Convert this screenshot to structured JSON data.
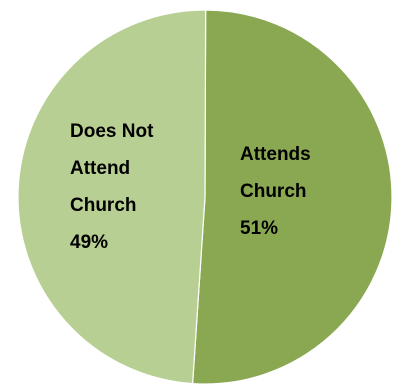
{
  "chart_data": {
    "type": "pie",
    "title": "",
    "slices": [
      {
        "label": "Attends Church",
        "label_lines": [
          "Attends",
          "Church"
        ],
        "value": 51,
        "value_label": "51%",
        "color": "#8aa752"
      },
      {
        "label": "Does Not Attend Church",
        "label_lines": [
          "Does Not",
          "Attend",
          "Church"
        ],
        "value": 49,
        "value_label": "49%",
        "color": "#b8cf93"
      }
    ],
    "legend": "none"
  }
}
